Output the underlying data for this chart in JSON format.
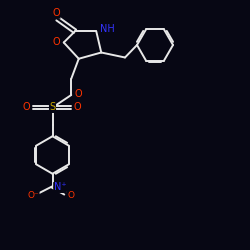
{
  "bg_color": "#070714",
  "bond_color": "#e8e8e8",
  "bond_width": 1.4,
  "O_color": "#ff3300",
  "N_color": "#3333ff",
  "S_color": "#ccaa00",
  "xlim": [
    0,
    10
  ],
  "ylim": [
    0,
    10
  ]
}
